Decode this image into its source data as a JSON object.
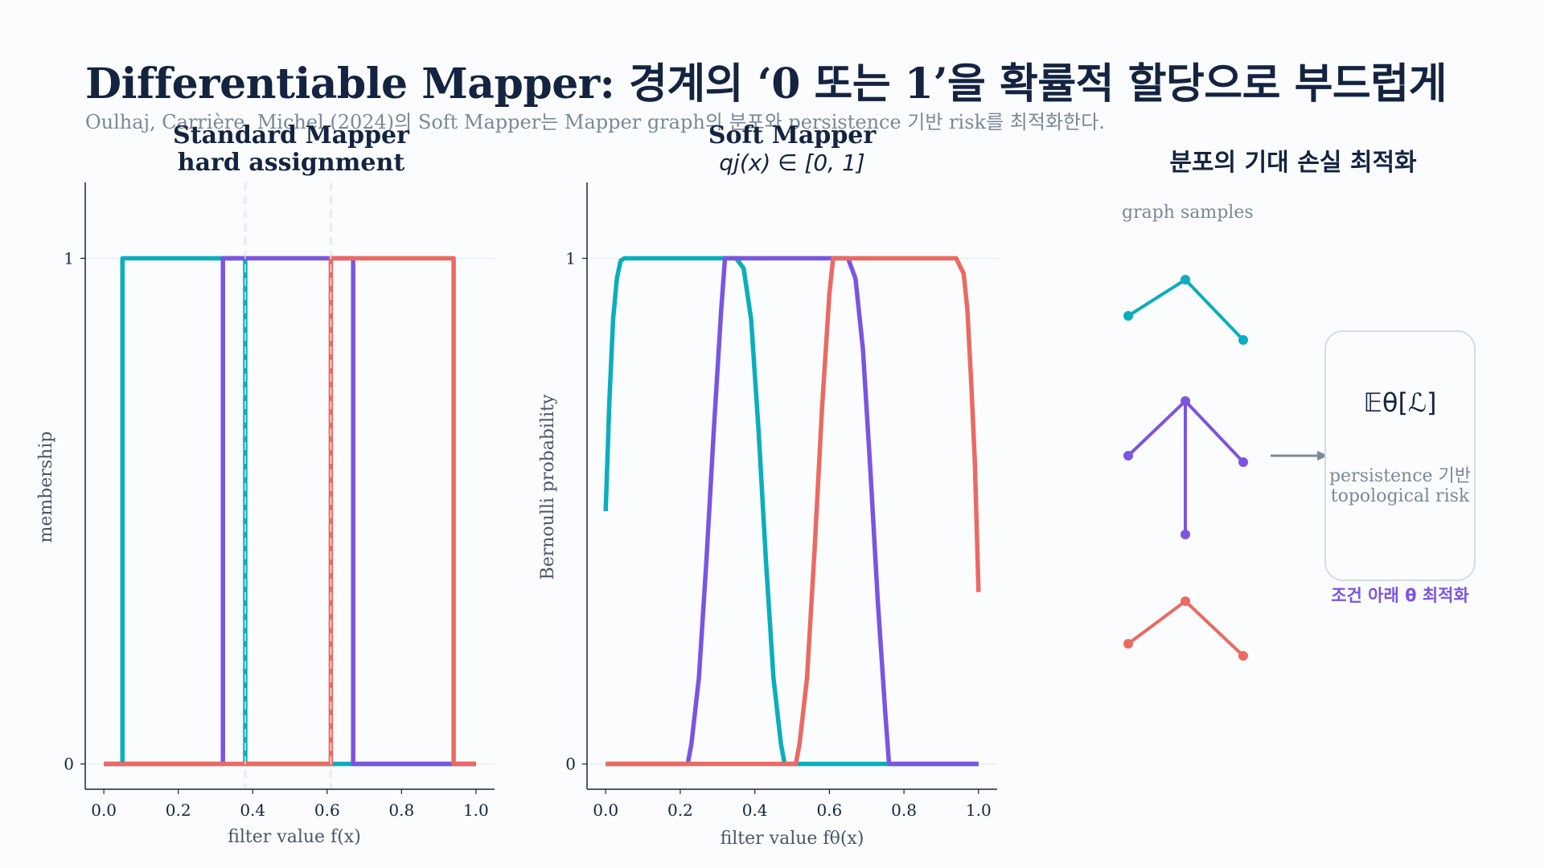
{
  "title": "Differentiable Mapper: 경계의 ‘0 또는 1’을 확률적 할당으로 부드럽게",
  "subtitle": "Oulhaj, Carrière, Michel (2024)의 Soft Mapper는 Mapper graph의 분포와 persistence 기반 risk를 최적화한다.",
  "colors": {
    "teal": "#0aaebd",
    "purple": "#7b55e0",
    "coral": "#ea6a62",
    "text": "#142440",
    "muted": "#7b8798"
  },
  "chart_data": [
    {
      "type": "line",
      "title_line1": "Standard Mapper",
      "title_line2": "hard assignment",
      "xlabel": "filter value  f(x)",
      "ylabel": "membership",
      "xlim": [
        -0.05,
        1.05
      ],
      "ylim": [
        -0.05,
        1.15
      ],
      "xticks": [
        "0.0",
        "0.2",
        "0.4",
        "0.6",
        "0.8",
        "1.0"
      ],
      "yticks": [
        "0",
        "1"
      ],
      "boundaries": [
        0.38,
        0.61
      ],
      "series": [
        {
          "color": "teal",
          "x": [
            0.0,
            0.05,
            0.05,
            0.38,
            0.38,
            0.61,
            0.61,
            1.0
          ],
          "y": [
            0,
            0,
            1,
            1,
            0,
            0,
            0,
            0
          ]
        },
        {
          "color": "purple",
          "x": [
            0.0,
            0.32,
            0.32,
            0.67,
            0.67,
            1.0
          ],
          "y": [
            0,
            0,
            1,
            1,
            0,
            0
          ]
        },
        {
          "color": "coral",
          "x": [
            0.0,
            0.61,
            0.61,
            0.94,
            0.94,
            1.0
          ],
          "y": [
            0,
            0,
            1,
            1,
            0,
            0
          ]
        }
      ]
    },
    {
      "type": "line",
      "title_line1": "Soft Mapper",
      "title_math": "qj(x) ∈ [0, 1]",
      "xlabel": "filter value  fθ(x)",
      "ylabel": "Bernoulli probability",
      "xlim": [
        -0.05,
        1.05
      ],
      "ylim": [
        -0.05,
        1.15
      ],
      "xticks": [
        "0.0",
        "0.2",
        "0.4",
        "0.6",
        "0.8",
        "1.0"
      ],
      "yticks": [
        "0",
        "1"
      ],
      "series": [
        {
          "color": "teal",
          "x": [
            0.0,
            0.01,
            0.02,
            0.03,
            0.04,
            0.05,
            0.35,
            0.37,
            0.39,
            0.41,
            0.43,
            0.45,
            0.47,
            0.48,
            1.0
          ],
          "y": [
            0.5,
            0.72,
            0.88,
            0.96,
            0.995,
            1.0,
            1.0,
            0.98,
            0.88,
            0.66,
            0.4,
            0.17,
            0.04,
            0.0,
            0.0
          ]
        },
        {
          "color": "purple",
          "x": [
            0.0,
            0.22,
            0.23,
            0.25,
            0.27,
            0.29,
            0.31,
            0.32,
            0.65,
            0.67,
            0.69,
            0.71,
            0.73,
            0.75,
            0.76,
            1.0
          ],
          "y": [
            0,
            0,
            0.04,
            0.17,
            0.4,
            0.66,
            0.9,
            1.0,
            1.0,
            0.96,
            0.82,
            0.58,
            0.32,
            0.1,
            0.0,
            0.0
          ]
        },
        {
          "color": "coral",
          "x": [
            0.0,
            0.51,
            0.52,
            0.54,
            0.56,
            0.58,
            0.6,
            0.61,
            0.94,
            0.96,
            0.97,
            0.98,
            0.99,
            1.0
          ],
          "y": [
            0,
            0,
            0.04,
            0.17,
            0.42,
            0.7,
            0.93,
            1.0,
            1.0,
            0.97,
            0.9,
            0.76,
            0.6,
            0.34
          ]
        }
      ]
    }
  ],
  "right_panel": {
    "title": "분포의 기대 손실 최적화",
    "samples_label": "graph samples",
    "box_math": "𝔼θ[ℒ]",
    "box_line1": "persistence 기반",
    "box_line2": "topological risk",
    "box_caption": "조건 아래 θ 최적화"
  }
}
